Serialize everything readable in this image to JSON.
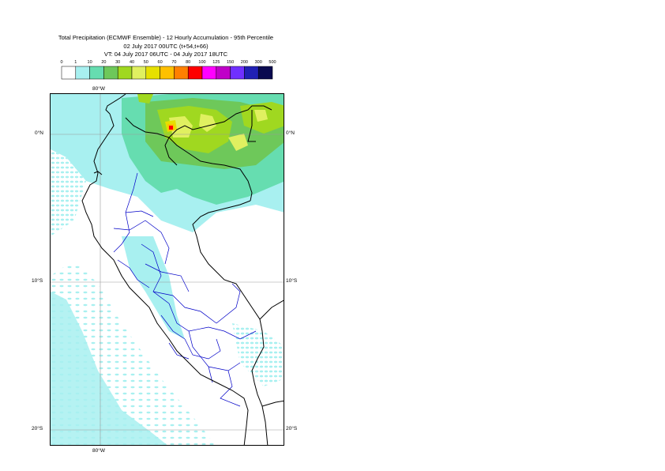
{
  "header": {
    "line1": "Total Precipitation (ECMWF Ensemble) - 12 Hourly Accumulation - 95th Percentile",
    "line2": "02 July 2017 00UTC (t+54,t+66)",
    "line3": "VT: 04 July 2017 06UTC - 04 July 2017 18UTC"
  },
  "legend": {
    "thresholds": [
      "0",
      "1",
      "10",
      "20",
      "30",
      "40",
      "50",
      "60",
      "70",
      "80",
      "100",
      "125",
      "150",
      "200",
      "300",
      "500"
    ],
    "colors": [
      "#ffffff",
      "#a8f0f0",
      "#66ddb0",
      "#6ec85a",
      "#a0d820",
      "#e0f060",
      "#e6e000",
      "#ffc000",
      "#ff8000",
      "#ff0000",
      "#ff00ff",
      "#c000c8",
      "#7030ff",
      "#2020b4",
      "#0a0a50"
    ]
  },
  "map": {
    "lat_labels": {
      "eq_left": "0°N",
      "eq_right": "0°N",
      "s10_left": "10°S",
      "s10_right": "10°S",
      "s20_left": "20°S",
      "s20_right": "20°S"
    },
    "lon_labels": {
      "top": "80°W",
      "bottom": "80°W"
    },
    "colors": {
      "coast": "#000000",
      "admin": "#0000c8",
      "grid": "#9a9a9a"
    }
  }
}
